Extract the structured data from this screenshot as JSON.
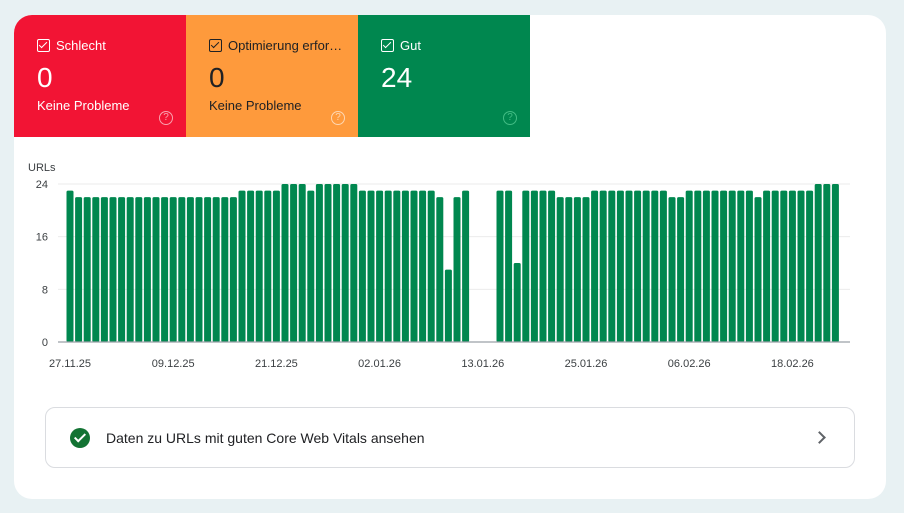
{
  "tiles": [
    {
      "label": "Schlecht",
      "value": "0",
      "sub": "Keine Probleme",
      "color": "#f21434"
    },
    {
      "label": "Optimierung erfor…",
      "value": "0",
      "sub": "Keine Probleme",
      "color": "#fe9a3c"
    },
    {
      "label": "Gut",
      "value": "24",
      "sub": "",
      "color": "#00874f"
    }
  ],
  "help_icon": "?",
  "chart_data": {
    "type": "bar",
    "ylabel": "URLs",
    "ylim": [
      0,
      24
    ],
    "yticks": [
      "0",
      "8",
      "16",
      "24"
    ],
    "xtick_labels": [
      "27.11.25",
      "09.12.25",
      "21.12.25",
      "02.01.26",
      "13.01.26",
      "25.01.26",
      "06.02.26",
      "18.02.26"
    ],
    "start_date": "27.11.25",
    "color": "#00874f",
    "values": [
      23,
      22,
      22,
      22,
      22,
      22,
      22,
      22,
      22,
      22,
      22,
      22,
      22,
      22,
      22,
      22,
      22,
      22,
      22,
      22,
      23,
      23,
      23,
      23,
      23,
      24,
      24,
      24,
      23,
      24,
      24,
      24,
      24,
      24,
      23,
      23,
      23,
      23,
      23,
      23,
      23,
      23,
      23,
      22,
      11,
      22,
      23,
      null,
      null,
      null,
      23,
      23,
      12,
      23,
      23,
      23,
      23,
      22,
      22,
      22,
      22,
      23,
      23,
      23,
      23,
      23,
      23,
      23,
      23,
      23,
      22,
      22,
      23,
      23,
      23,
      23,
      23,
      23,
      23,
      23,
      22,
      23,
      23,
      23,
      23,
      23,
      23,
      24,
      24,
      24
    ]
  },
  "link": {
    "label": "Daten zu URLs mit guten Core Web Vitals ansehen"
  }
}
